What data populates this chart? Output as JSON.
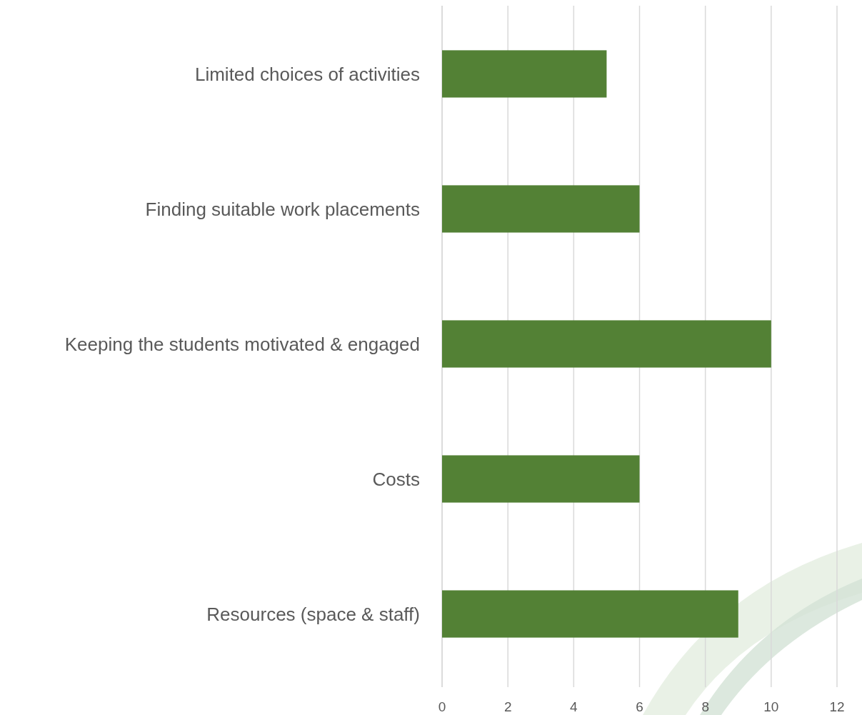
{
  "chart_data": {
    "type": "bar",
    "orientation": "horizontal",
    "categories": [
      "Limited choices of activities",
      "Finding suitable work placements",
      "Keeping the students motivated & engaged",
      "Costs",
      "Resources (space & staff)"
    ],
    "values": [
      5,
      6,
      10,
      6,
      9
    ],
    "color": "#538135",
    "xlim": [
      0,
      12
    ],
    "xticks": [
      0,
      2,
      4,
      6,
      8,
      10,
      12
    ],
    "grid": "x"
  }
}
